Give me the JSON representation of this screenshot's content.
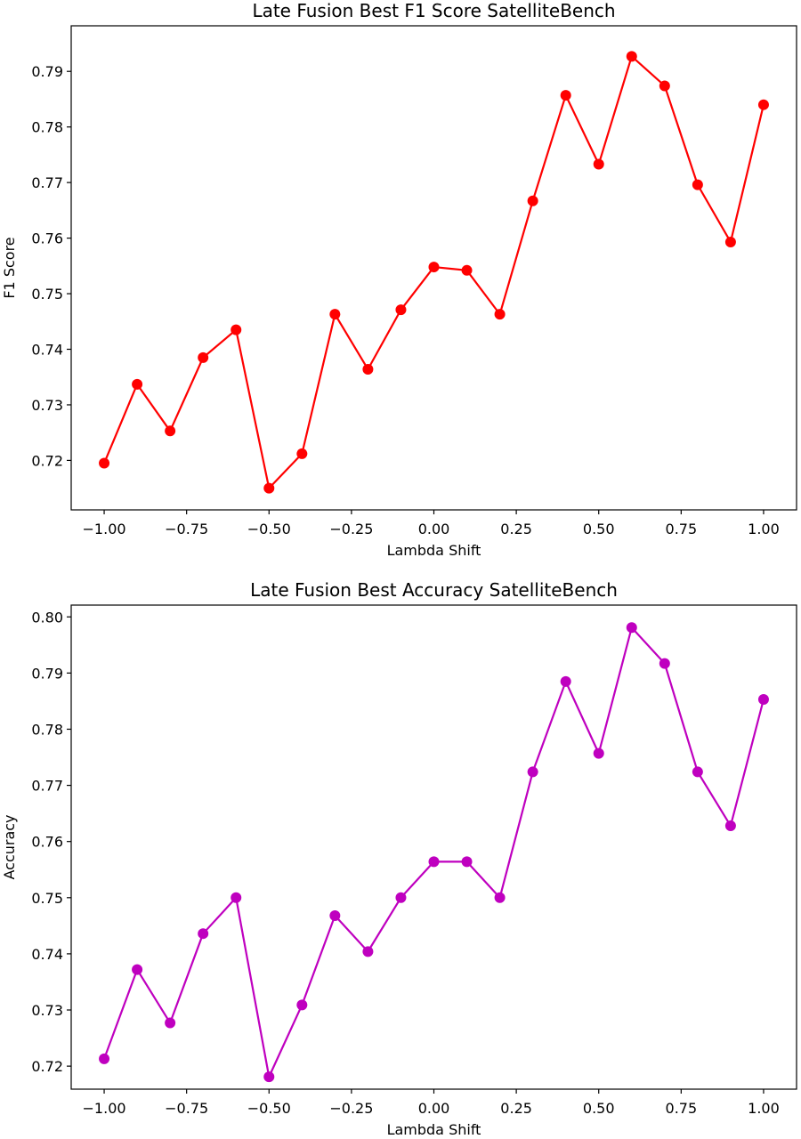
{
  "chart_data": [
    {
      "type": "line",
      "title": "Late Fusion Best F1 Score SatelliteBench",
      "xlabel": "Lambda Shift",
      "ylabel": "F1 Score",
      "xlim": [
        -1.1,
        1.1
      ],
      "ylim": [
        0.7111,
        0.7982
      ],
      "xticks": [
        -1.0,
        -0.75,
        -0.5,
        -0.25,
        0.0,
        0.25,
        0.5,
        0.75,
        1.0
      ],
      "xtick_labels": [
        "−1.00",
        "−0.75",
        "−0.50",
        "−0.25",
        "0.00",
        "0.25",
        "0.50",
        "0.75",
        "1.00"
      ],
      "yticks": [
        0.72,
        0.73,
        0.74,
        0.75,
        0.76,
        0.77,
        0.78,
        0.79
      ],
      "ytick_labels": [
        "0.72",
        "0.73",
        "0.74",
        "0.75",
        "0.76",
        "0.77",
        "0.78",
        "0.79"
      ],
      "grid": false,
      "color": "#ff0000",
      "series": [
        {
          "x": [
            -1.0,
            -0.9,
            -0.8,
            -0.7,
            -0.6,
            -0.5,
            -0.4,
            -0.3,
            -0.2,
            -0.1,
            0.0,
            0.1,
            0.2,
            0.3,
            0.4,
            0.5,
            0.6,
            0.7,
            0.8,
            0.9,
            1.0
          ],
          "values": [
            0.7195,
            0.7337,
            0.7253,
            0.7385,
            0.7435,
            0.715,
            0.7212,
            0.7463,
            0.7364,
            0.7471,
            0.7548,
            0.7542,
            0.7463,
            0.7667,
            0.7857,
            0.7733,
            0.7927,
            0.7874,
            0.7696,
            0.7593,
            0.784
          ]
        }
      ]
    },
    {
      "type": "line",
      "title": "Late Fusion Best Accuracy SatelliteBench",
      "xlabel": "Lambda Shift",
      "ylabel": "Accuracy",
      "xlim": [
        -1.1,
        1.1
      ],
      "ylim": [
        0.7159,
        0.8021
      ],
      "xticks": [
        -1.0,
        -0.75,
        -0.5,
        -0.25,
        0.0,
        0.25,
        0.5,
        0.75,
        1.0
      ],
      "xtick_labels": [
        "−1.00",
        "−0.75",
        "−0.50",
        "−0.25",
        "0.00",
        "0.25",
        "0.50",
        "0.75",
        "1.00"
      ],
      "yticks": [
        0.72,
        0.73,
        0.74,
        0.75,
        0.76,
        0.77,
        0.78,
        0.79,
        0.8
      ],
      "ytick_labels": [
        "0.72",
        "0.73",
        "0.74",
        "0.75",
        "0.76",
        "0.77",
        "0.78",
        "0.79",
        "0.80"
      ],
      "grid": false,
      "color": "#bf00bf",
      "series": [
        {
          "x": [
            -1.0,
            -0.9,
            -0.8,
            -0.7,
            -0.6,
            -0.5,
            -0.4,
            -0.3,
            -0.2,
            -0.1,
            0.0,
            0.1,
            0.2,
            0.3,
            0.4,
            0.5,
            0.6,
            0.7,
            0.8,
            0.9,
            1.0
          ],
          "values": [
            0.7213,
            0.7372,
            0.7277,
            0.7436,
            0.75,
            0.7181,
            0.7309,
            0.7468,
            0.7404,
            0.75,
            0.7564,
            0.7564,
            0.75,
            0.7724,
            0.7885,
            0.7757,
            0.7981,
            0.7917,
            0.7724,
            0.7628,
            0.7853
          ]
        }
      ]
    }
  ]
}
